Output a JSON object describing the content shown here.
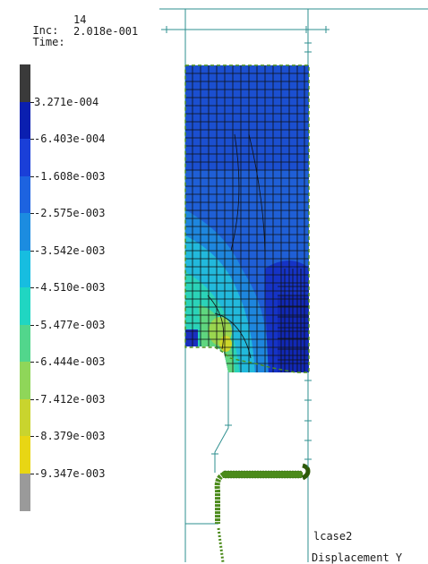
{
  "header": {
    "inc_label": "Inc:",
    "inc_value": "14",
    "time_label": "Time:",
    "time_value": "2.018e-001"
  },
  "legend": {
    "labels": [
      "3.271e-004",
      "-6.403e-004",
      "-1.608e-003",
      "-2.575e-003",
      "-3.542e-003",
      "-4.510e-003",
      "-5.477e-003",
      "-6.444e-003",
      "-7.412e-003",
      "-8.379e-003",
      "-9.347e-003"
    ],
    "colors": [
      "#3a3a3a",
      "#0a1fb0",
      "#1a3fd8",
      "#1d63e0",
      "#1c8ce0",
      "#17bde0",
      "#20d6c2",
      "#52d68c",
      "#8fd659",
      "#c9d42e",
      "#e8d614",
      "#9a9a9a"
    ]
  },
  "footer": {
    "loadcase": "lcase2",
    "quantity": "Displacement Y"
  }
}
